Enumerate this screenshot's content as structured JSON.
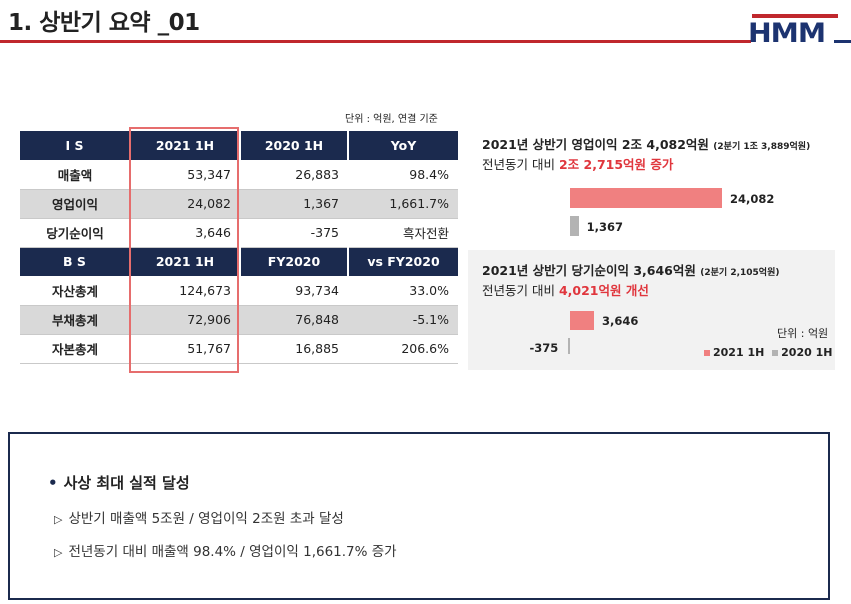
{
  "header": {
    "title": "1. 상반기 요약 _01",
    "logo": "HMM"
  },
  "table": {
    "unit_note": "단위 : 억원, 연결 기준",
    "is_header": [
      "I S",
      "2021 1H",
      "2020 1H",
      "YoY"
    ],
    "is_rows": [
      {
        "label": "매출액",
        "a": "53,347",
        "b": "26,883",
        "c": "98.4%"
      },
      {
        "label": "영업이익",
        "a": "24,082",
        "b": "1,367",
        "c": "1,661.7%"
      },
      {
        "label": "당기순이익",
        "a": "3,646",
        "b": "-375",
        "c": "흑자전환"
      }
    ],
    "bs_header": [
      "B S",
      "2021 1H",
      "FY2020",
      "vs FY2020"
    ],
    "bs_rows": [
      {
        "label": "자산총계",
        "a": "124,673",
        "b": "93,734",
        "c": "33.0%"
      },
      {
        "label": "부채총계",
        "a": "72,906",
        "b": "76,848",
        "c": "-5.1%"
      },
      {
        "label": "자본총계",
        "a": "51,767",
        "b": "16,885",
        "c": "206.6%"
      }
    ]
  },
  "panel1": {
    "head": "2021년 상반기 영업이익 2조 4,082억원",
    "head_small": "(2분기 1조 3,889억원)",
    "sub_prefix": "전년동기 대비",
    "sub_highlight": "2조 2,715억원 증가"
  },
  "panel2": {
    "head": "2021년 상반기 당기순이익 3,646억원",
    "head_small": "(2분기 2,105억원)",
    "sub_prefix": "전년동기 대비",
    "sub_highlight": "4,021억원 개선",
    "unit": "단위 : 억원",
    "legend": [
      "2021 1H",
      "2020 1H"
    ]
  },
  "chart_data": [
    {
      "type": "bar",
      "categories": [
        "2021 1H",
        "2020 1H"
      ],
      "values": [
        24082,
        1367
      ],
      "labels": [
        "24,082",
        "1,367"
      ]
    },
    {
      "type": "bar",
      "categories": [
        "2021 1H",
        "2020 1H"
      ],
      "values": [
        3646,
        -375
      ],
      "labels": [
        "3,646",
        "-375"
      ]
    }
  ],
  "colors": {
    "navy": "#1b2a4e",
    "red": "#c0272d",
    "bar_2021": "#f08080",
    "bar_2020": "#b3b3b3",
    "highlight": "#e0363d"
  },
  "summary": {
    "heading": "사상 최대 실적 달성",
    "items": [
      "상반기 매출액 5조원 / 영업이익 2조원 초과 달성",
      "전년동기 대비 매출액 98.4% / 영업이익 1,661.7% 증가"
    ]
  }
}
